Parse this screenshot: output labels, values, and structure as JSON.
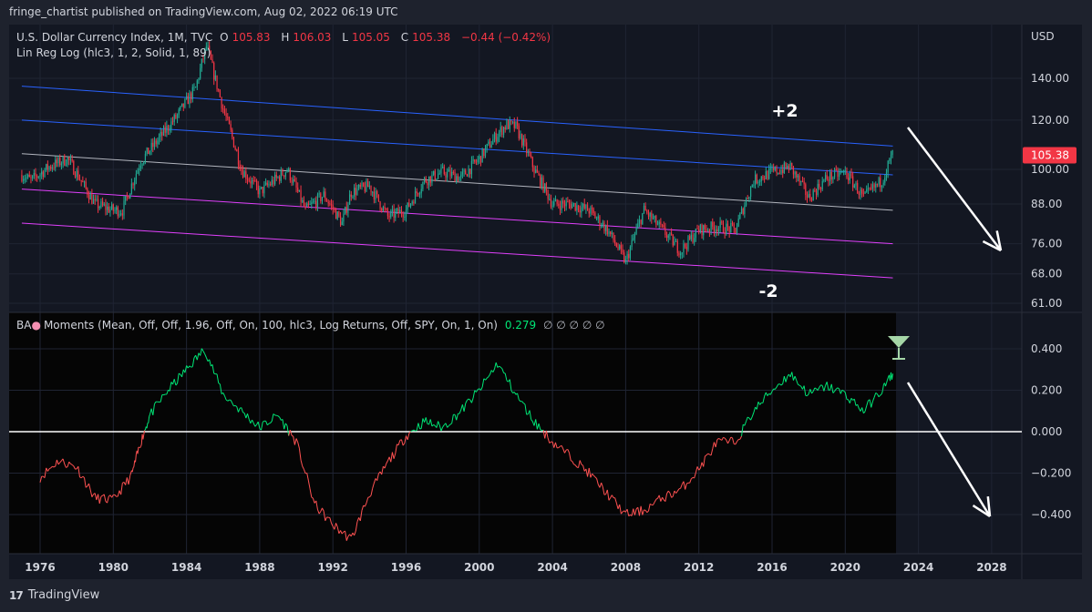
{
  "header": {
    "publisher": "fringe_chartist published on TradingView.com, Aug 02, 2022 06:19 UTC"
  },
  "legend_main": {
    "symbol": "U.S. Dollar Currency Index, 1M, TVC",
    "o_label": "O",
    "o": "105.83",
    "h_label": "H",
    "h": "106.03",
    "l_label": "L",
    "l": "105.05",
    "c_label": "C",
    "c": "105.38",
    "change": "−0.44 (−0.42%)",
    "indicator": "Lin Reg Log (hlc3, 1, 2, Solid, 1, 89)"
  },
  "legend_sub": {
    "name_prefix": "BA",
    "name_suffix": "Moments (Mean, Off, Off, 1.96, Off, On, 100, hlc3, Log Returns, Off, SPY, On, 1, On)",
    "value": "0.279",
    "empties": "∅  ∅  ∅  ∅  ∅"
  },
  "footer": {
    "brand": "TradingView",
    "logo": "17"
  },
  "colors": {
    "bg": "#131722",
    "up": "#22ab94",
    "down": "#f23645",
    "channel_outer": "#2962ff",
    "channel_mid": "#b2b5be",
    "channel_low": "#e040fb",
    "osc_pos": "#00e676",
    "osc_neg": "#ff5252"
  },
  "chart_data": [
    {
      "type": "candlestick",
      "title": "U.S. Dollar Currency Index, 1M, TVC",
      "scale": "log",
      "ylabel": "USD",
      "yticks": [
        "140.00",
        "120.00",
        "100.00",
        "88.00",
        "76.00",
        "68.00",
        "61.00"
      ],
      "ytick_values": [
        140,
        120,
        100,
        88,
        76,
        68,
        61
      ],
      "xticks": [
        "1976",
        "1980",
        "1984",
        "1988",
        "1992",
        "1996",
        "2000",
        "2004",
        "2008",
        "2012",
        "2016",
        "2020",
        "2024",
        "2028"
      ],
      "xtick_values": [
        1976,
        1980,
        1984,
        1988,
        1992,
        1996,
        2000,
        2004,
        2008,
        2012,
        2016,
        2020,
        2024,
        2028
      ],
      "last_price": "105.38",
      "annotations": [
        "+2",
        "-2"
      ],
      "price_path": [
        [
          1975.0,
          98
        ],
        [
          1975.5,
          96
        ],
        [
          1976.5,
          101
        ],
        [
          1977.5,
          104
        ],
        [
          1978.5,
          93
        ],
        [
          1979.0,
          88
        ],
        [
          1980.0,
          86
        ],
        [
          1980.5,
          86
        ],
        [
          1981.5,
          103
        ],
        [
          1982.5,
          112
        ],
        [
          1983.5,
          122
        ],
        [
          1984.5,
          135
        ],
        [
          1985.1,
          158
        ],
        [
          1985.5,
          142
        ],
        [
          1986.0,
          125
        ],
        [
          1987.0,
          100
        ],
        [
          1988.0,
          92
        ],
        [
          1989.0,
          97
        ],
        [
          1989.5,
          100
        ],
        [
          1990.5,
          86
        ],
        [
          1991.5,
          91
        ],
        [
          1992.5,
          82
        ],
        [
          1993.0,
          92
        ],
        [
          1994.0,
          94
        ],
        [
          1995.0,
          84
        ],
        [
          1996.0,
          86
        ],
        [
          1997.0,
          96
        ],
        [
          1998.0,
          99
        ],
        [
          1999.0,
          97
        ],
        [
          2000.0,
          104
        ],
        [
          2001.0,
          114
        ],
        [
          2001.5,
          118
        ],
        [
          2002.0,
          117
        ],
        [
          2003.0,
          100
        ],
        [
          2004.0,
          88
        ],
        [
          2005.0,
          88
        ],
        [
          2006.0,
          86
        ],
        [
          2007.0,
          80
        ],
        [
          2008.0,
          71
        ],
        [
          2009.0,
          86
        ],
        [
          2010.0,
          80
        ],
        [
          2011.0,
          74
        ],
        [
          2012.0,
          80
        ],
        [
          2013.0,
          81
        ],
        [
          2014.0,
          80
        ],
        [
          2015.0,
          96
        ],
        [
          2016.0,
          99
        ],
        [
          2017.0,
          101
        ],
        [
          2018.0,
          90
        ],
        [
          2019.0,
          97
        ],
        [
          2020.0,
          99
        ],
        [
          2021.0,
          90
        ],
        [
          2021.5,
          93
        ],
        [
          2022.0,
          96
        ],
        [
          2022.6,
          106
        ]
      ],
      "lin_reg_channel": {
        "start_x": 1975.0,
        "end_x": 2022.6,
        "bands": [
          {
            "name": "+2 band",
            "start": 136,
            "end": 109
          },
          {
            "name": "+1 band",
            "start": 120,
            "end": 98
          },
          {
            "name": "center",
            "start": 106,
            "end": 86
          },
          {
            "name": "-1 band",
            "start": 93,
            "end": 76
          },
          {
            "name": "-2 band",
            "start": 82,
            "end": 67
          }
        ]
      }
    },
    {
      "type": "line",
      "title": "BA Moments",
      "yticks": [
        "0.400",
        "0.200",
        "0.000",
        "−0.200",
        "−0.400"
      ],
      "ytick_values": [
        0.4,
        0.2,
        0.0,
        -0.2,
        -0.4
      ],
      "last_value": 0.279,
      "series": [
        [
          1976.0,
          -0.22
        ],
        [
          1977.0,
          -0.14
        ],
        [
          1978.0,
          -0.17
        ],
        [
          1979.0,
          -0.32
        ],
        [
          1980.0,
          -0.33
        ],
        [
          1981.0,
          -0.21
        ],
        [
          1981.5,
          -0.05
        ],
        [
          1982.0,
          0.08
        ],
        [
          1983.0,
          0.2
        ],
        [
          1984.0,
          0.3
        ],
        [
          1985.0,
          0.4
        ],
        [
          1986.0,
          0.18
        ],
        [
          1987.0,
          0.1
        ],
        [
          1988.0,
          0.02
        ],
        [
          1989.0,
          0.08
        ],
        [
          1990.0,
          -0.05
        ],
        [
          1991.0,
          -0.35
        ],
        [
          1992.0,
          -0.45
        ],
        [
          1993.0,
          -0.52
        ],
        [
          1994.0,
          -0.3
        ],
        [
          1995.0,
          -0.15
        ],
        [
          1996.0,
          -0.02
        ],
        [
          1997.0,
          0.05
        ],
        [
          1998.0,
          0.02
        ],
        [
          1999.0,
          0.1
        ],
        [
          2000.0,
          0.2
        ],
        [
          2001.0,
          0.33
        ],
        [
          2002.0,
          0.18
        ],
        [
          2003.0,
          0.05
        ],
        [
          2004.0,
          -0.05
        ],
        [
          2005.0,
          -0.12
        ],
        [
          2006.0,
          -0.2
        ],
        [
          2007.0,
          -0.3
        ],
        [
          2008.0,
          -0.4
        ],
        [
          2009.0,
          -0.38
        ],
        [
          2010.0,
          -0.32
        ],
        [
          2011.0,
          -0.28
        ],
        [
          2012.0,
          -0.18
        ],
        [
          2013.0,
          -0.05
        ],
        [
          2014.0,
          -0.05
        ],
        [
          2015.0,
          0.1
        ],
        [
          2016.0,
          0.2
        ],
        [
          2017.0,
          0.28
        ],
        [
          2018.0,
          0.18
        ],
        [
          2019.0,
          0.22
        ],
        [
          2020.0,
          0.18
        ],
        [
          2021.0,
          0.1
        ],
        [
          2022.0,
          0.2
        ],
        [
          2022.6,
          0.28
        ]
      ]
    }
  ]
}
